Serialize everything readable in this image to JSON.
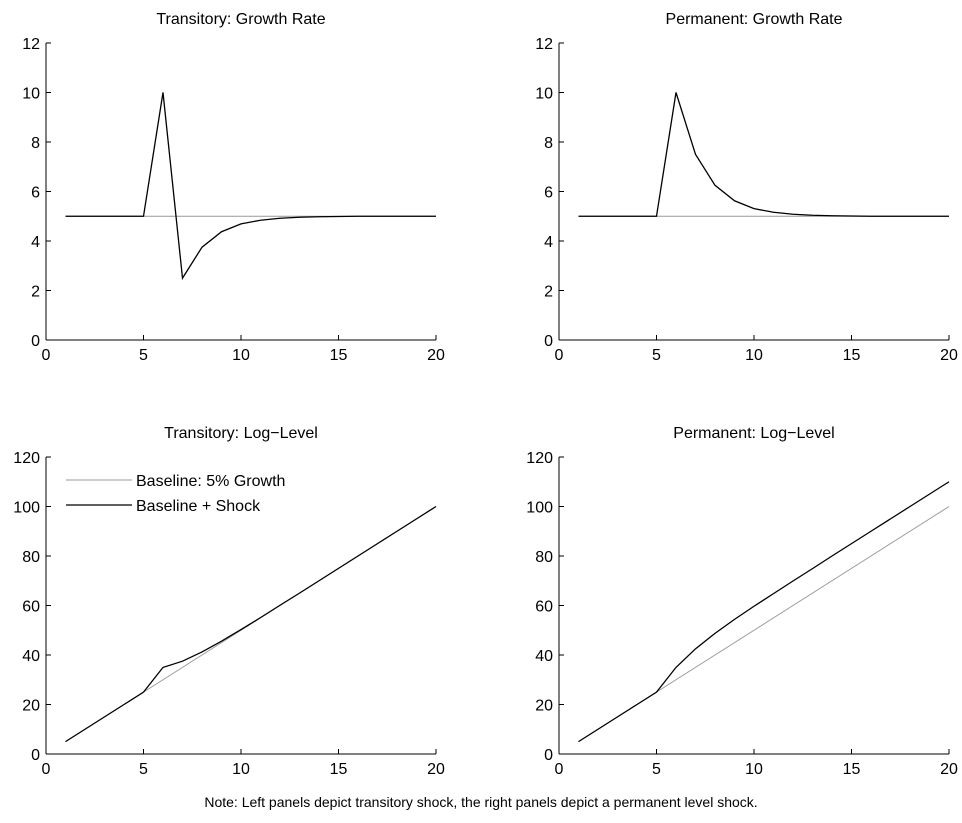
{
  "note": "Note: Left panels depict transitory shock, the right panels depict a permanent level shock.",
  "colors": {
    "baseline": "#999999",
    "shock": "#000000",
    "axis": "#000000"
  },
  "chart_data": [
    {
      "type": "line",
      "title": "Transitory: Growth Rate",
      "xlim": [
        0,
        20
      ],
      "ylim": [
        0,
        12
      ],
      "xticks": [
        0,
        5,
        10,
        15,
        20
      ],
      "yticks": [
        0,
        2,
        4,
        6,
        8,
        10,
        12
      ],
      "x": [
        1,
        2,
        3,
        4,
        5,
        6,
        7,
        8,
        9,
        10,
        11,
        12,
        13,
        14,
        15,
        16,
        17,
        18,
        19,
        20
      ],
      "series": [
        {
          "role": "baseline",
          "values": [
            5,
            5,
            5,
            5,
            5,
            5,
            5,
            5,
            5,
            5,
            5,
            5,
            5,
            5,
            5,
            5,
            5,
            5,
            5,
            5
          ]
        },
        {
          "role": "shock",
          "values": [
            5,
            5,
            5,
            5,
            5,
            10,
            2.5,
            3.75,
            4.375,
            4.69,
            4.84,
            4.92,
            4.96,
            4.98,
            4.99,
            5,
            5,
            5,
            5,
            5
          ]
        }
      ]
    },
    {
      "type": "line",
      "title": "Permanent: Growth Rate",
      "xlim": [
        0,
        20
      ],
      "ylim": [
        0,
        12
      ],
      "xticks": [
        0,
        5,
        10,
        15,
        20
      ],
      "yticks": [
        0,
        2,
        4,
        6,
        8,
        10,
        12
      ],
      "x": [
        1,
        2,
        3,
        4,
        5,
        6,
        7,
        8,
        9,
        10,
        11,
        12,
        13,
        14,
        15,
        16,
        17,
        18,
        19,
        20
      ],
      "series": [
        {
          "role": "baseline",
          "values": [
            5,
            5,
            5,
            5,
            5,
            5,
            5,
            5,
            5,
            5,
            5,
            5,
            5,
            5,
            5,
            5,
            5,
            5,
            5,
            5
          ]
        },
        {
          "role": "shock",
          "values": [
            5,
            5,
            5,
            5,
            5,
            10,
            7.5,
            6.25,
            5.625,
            5.31,
            5.16,
            5.08,
            5.04,
            5.02,
            5.01,
            5,
            5,
            5,
            5,
            5
          ]
        }
      ]
    },
    {
      "type": "line",
      "title": "Transitory: Log−Level",
      "xlim": [
        0,
        20
      ],
      "ylim": [
        0,
        120
      ],
      "xticks": [
        0,
        5,
        10,
        15,
        20
      ],
      "yticks": [
        0,
        20,
        40,
        60,
        80,
        100,
        120
      ],
      "legend_position": "top-left",
      "x": [
        1,
        2,
        3,
        4,
        5,
        6,
        7,
        8,
        9,
        10,
        11,
        12,
        13,
        14,
        15,
        16,
        17,
        18,
        19,
        20
      ],
      "series": [
        {
          "name": "Baseline: 5% Growth",
          "role": "baseline",
          "values": [
            5,
            10,
            15,
            20,
            25,
            30,
            35,
            40,
            45,
            50,
            55,
            60,
            65,
            70,
            75,
            80,
            85,
            90,
            95,
            100
          ]
        },
        {
          "name": "Baseline + Shock",
          "role": "shock",
          "values": [
            5,
            10,
            15,
            20,
            25,
            35,
            37.5,
            41.25,
            45.6,
            50.3,
            55.1,
            60.1,
            65,
            70,
            75,
            80,
            85,
            90,
            95,
            100
          ]
        }
      ]
    },
    {
      "type": "line",
      "title": "Permanent: Log−Level",
      "xlim": [
        0,
        20
      ],
      "ylim": [
        0,
        120
      ],
      "xticks": [
        0,
        5,
        10,
        15,
        20
      ],
      "yticks": [
        0,
        20,
        40,
        60,
        80,
        100,
        120
      ],
      "x": [
        1,
        2,
        3,
        4,
        5,
        6,
        7,
        8,
        9,
        10,
        11,
        12,
        13,
        14,
        15,
        16,
        17,
        18,
        19,
        20
      ],
      "series": [
        {
          "role": "baseline",
          "values": [
            5,
            10,
            15,
            20,
            25,
            30,
            35,
            40,
            45,
            50,
            55,
            60,
            65,
            70,
            75,
            80,
            85,
            90,
            95,
            100
          ]
        },
        {
          "role": "shock",
          "values": [
            5,
            10,
            15,
            20,
            25,
            35,
            42.5,
            48.75,
            54.4,
            59.7,
            64.8,
            69.9,
            74.9,
            80,
            85,
            90,
            95,
            100,
            105,
            110
          ]
        }
      ]
    }
  ]
}
